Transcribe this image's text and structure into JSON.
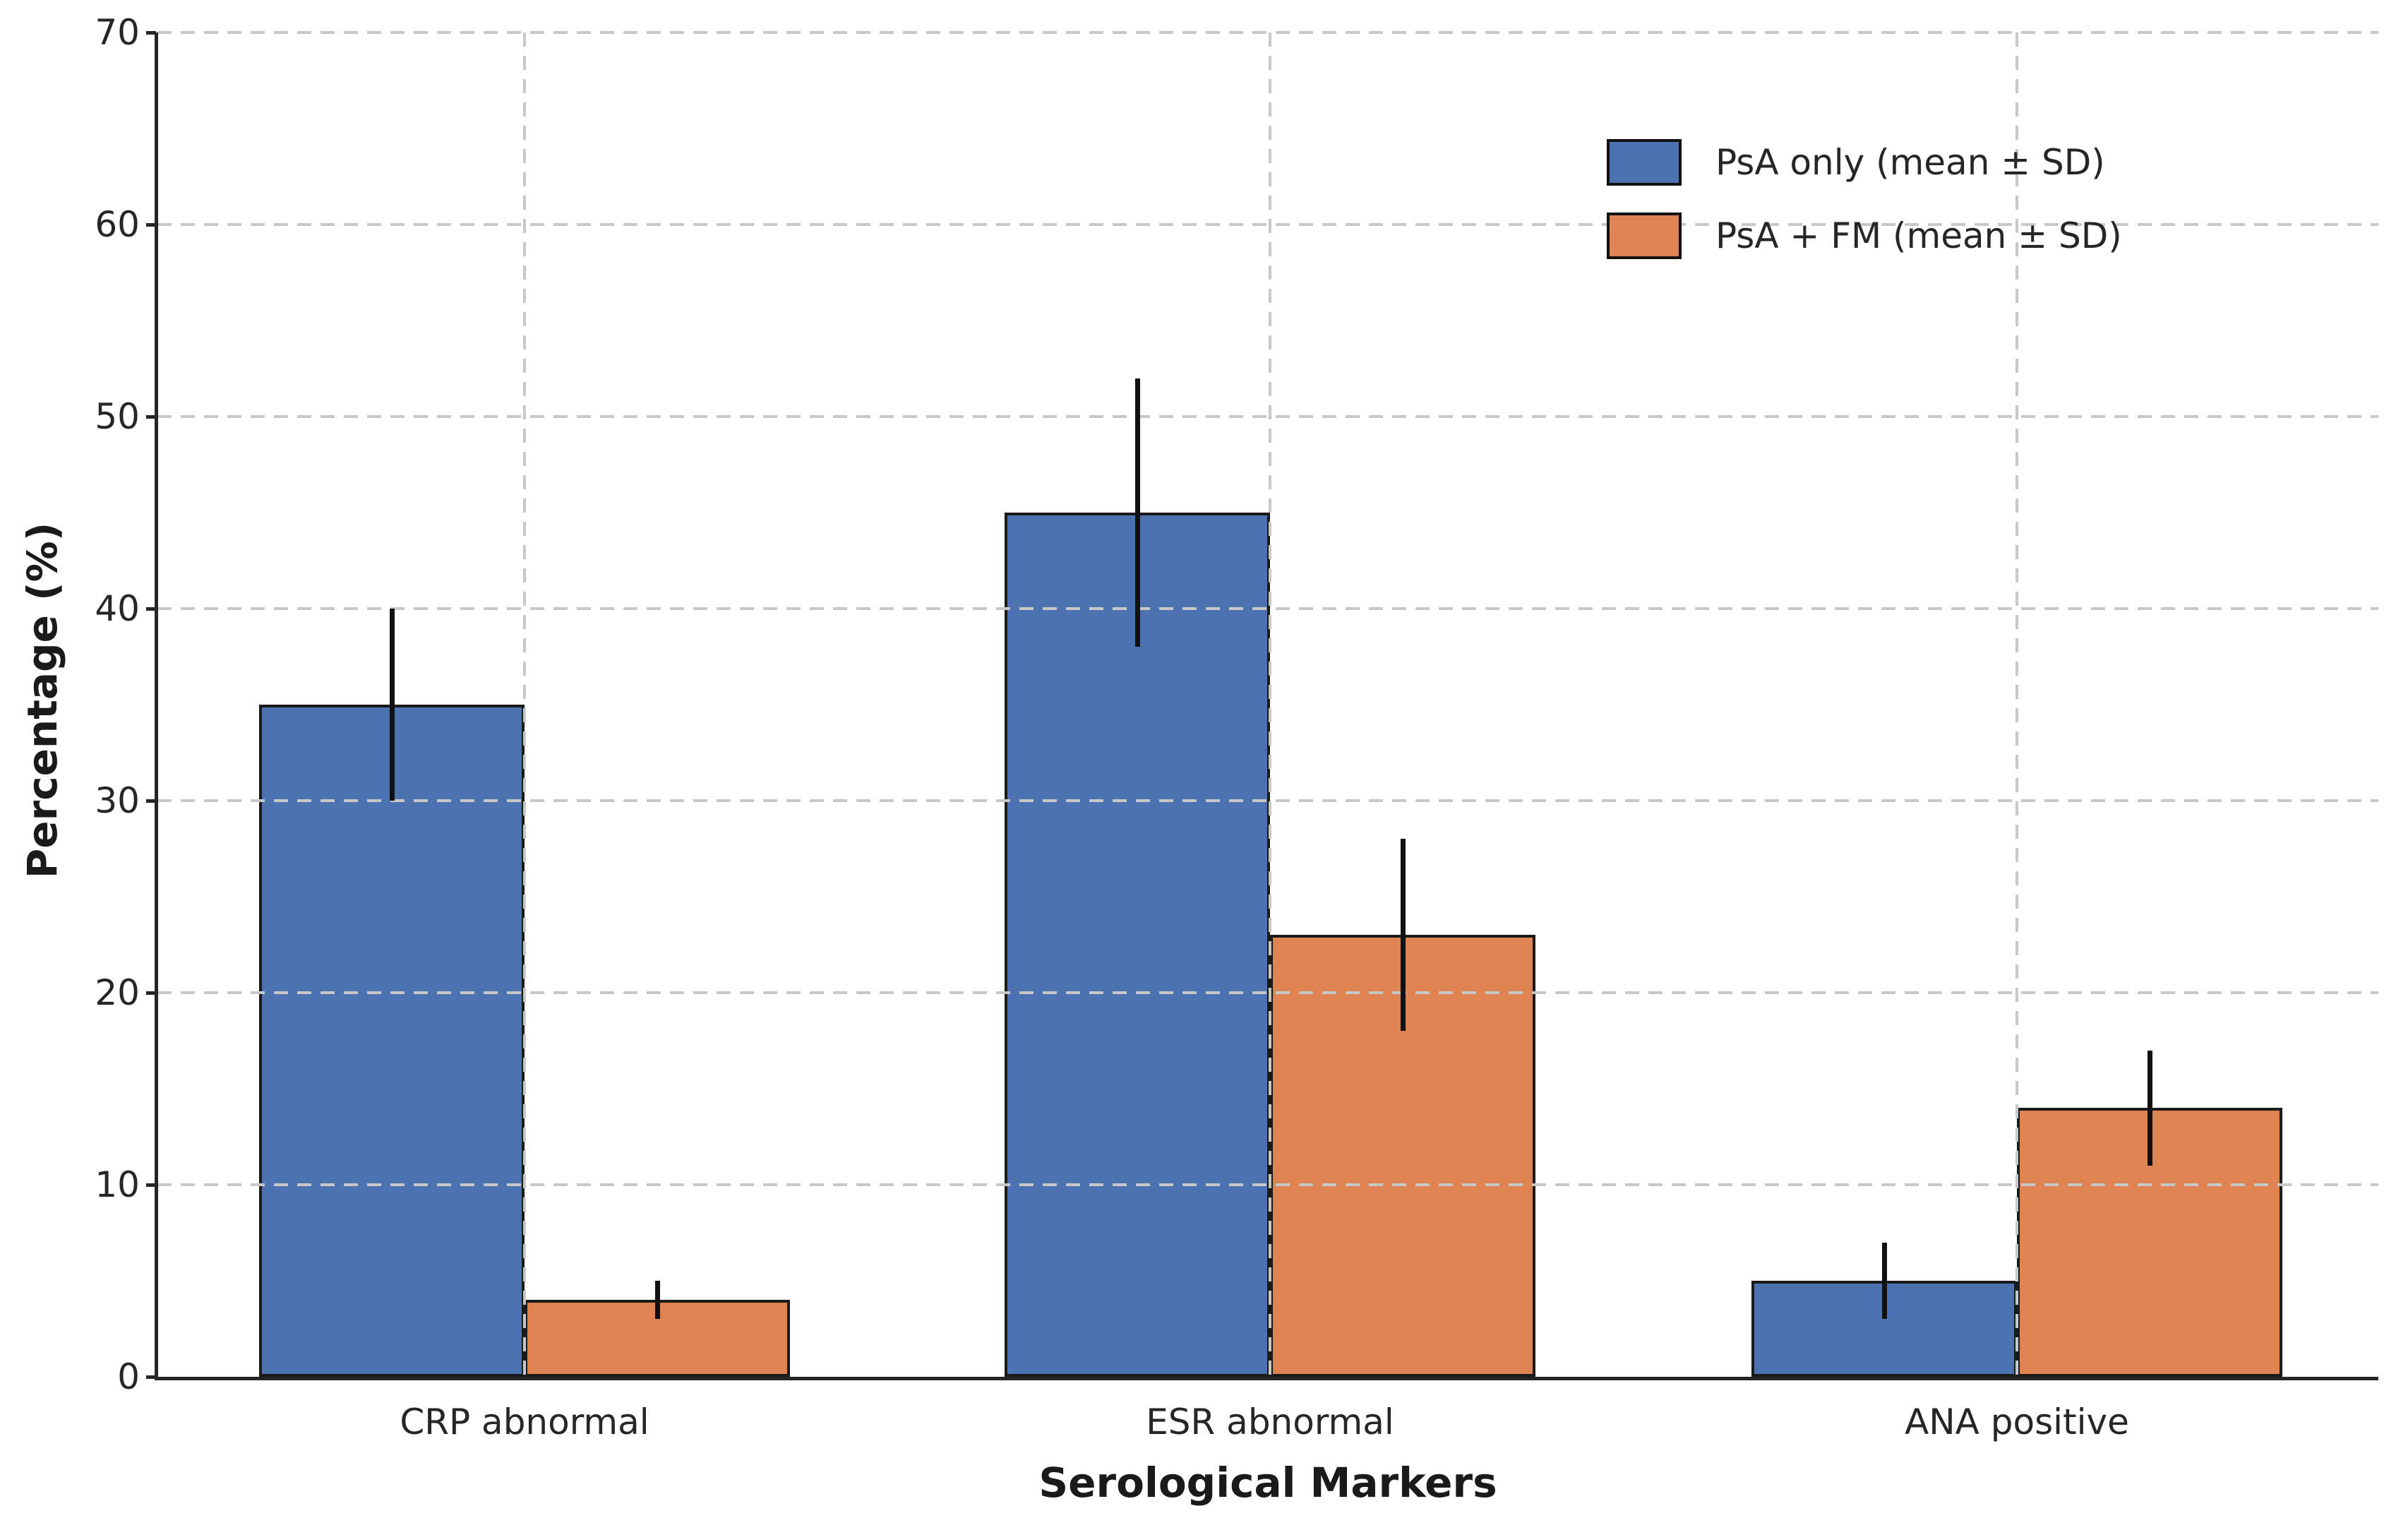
{
  "figure": {
    "background_color": "#ffffff",
    "grid_color": "#c8c8c8",
    "bar_edge_color": "#1a1a1a",
    "axis_color": "#262626"
  },
  "chart_data": {
    "type": "bar",
    "title": "",
    "xlabel": "Serological Markers",
    "ylabel": "Percentage (%)",
    "categories": [
      "CRP abnormal",
      "ESR abnormal",
      "ANA positive"
    ],
    "series": [
      {
        "name": "PsA only (mean ± SD)",
        "color": "#4C72B0",
        "values": [
          35,
          45,
          5
        ],
        "errors": [
          5,
          7,
          2
        ]
      },
      {
        "name": "PsA + FM (mean ± SD)",
        "color": "#DD8452",
        "values": [
          4,
          23,
          14
        ],
        "errors": [
          1,
          5,
          3
        ]
      }
    ],
    "ylim": [
      0,
      70
    ],
    "yticks": [
      0,
      10,
      20,
      30,
      40,
      50,
      60,
      70
    ],
    "grid": "dashed, x and y, drawn above bars",
    "error_bars": "symmetric ± SD, no caps",
    "legend_position": "upper right, no frame"
  }
}
